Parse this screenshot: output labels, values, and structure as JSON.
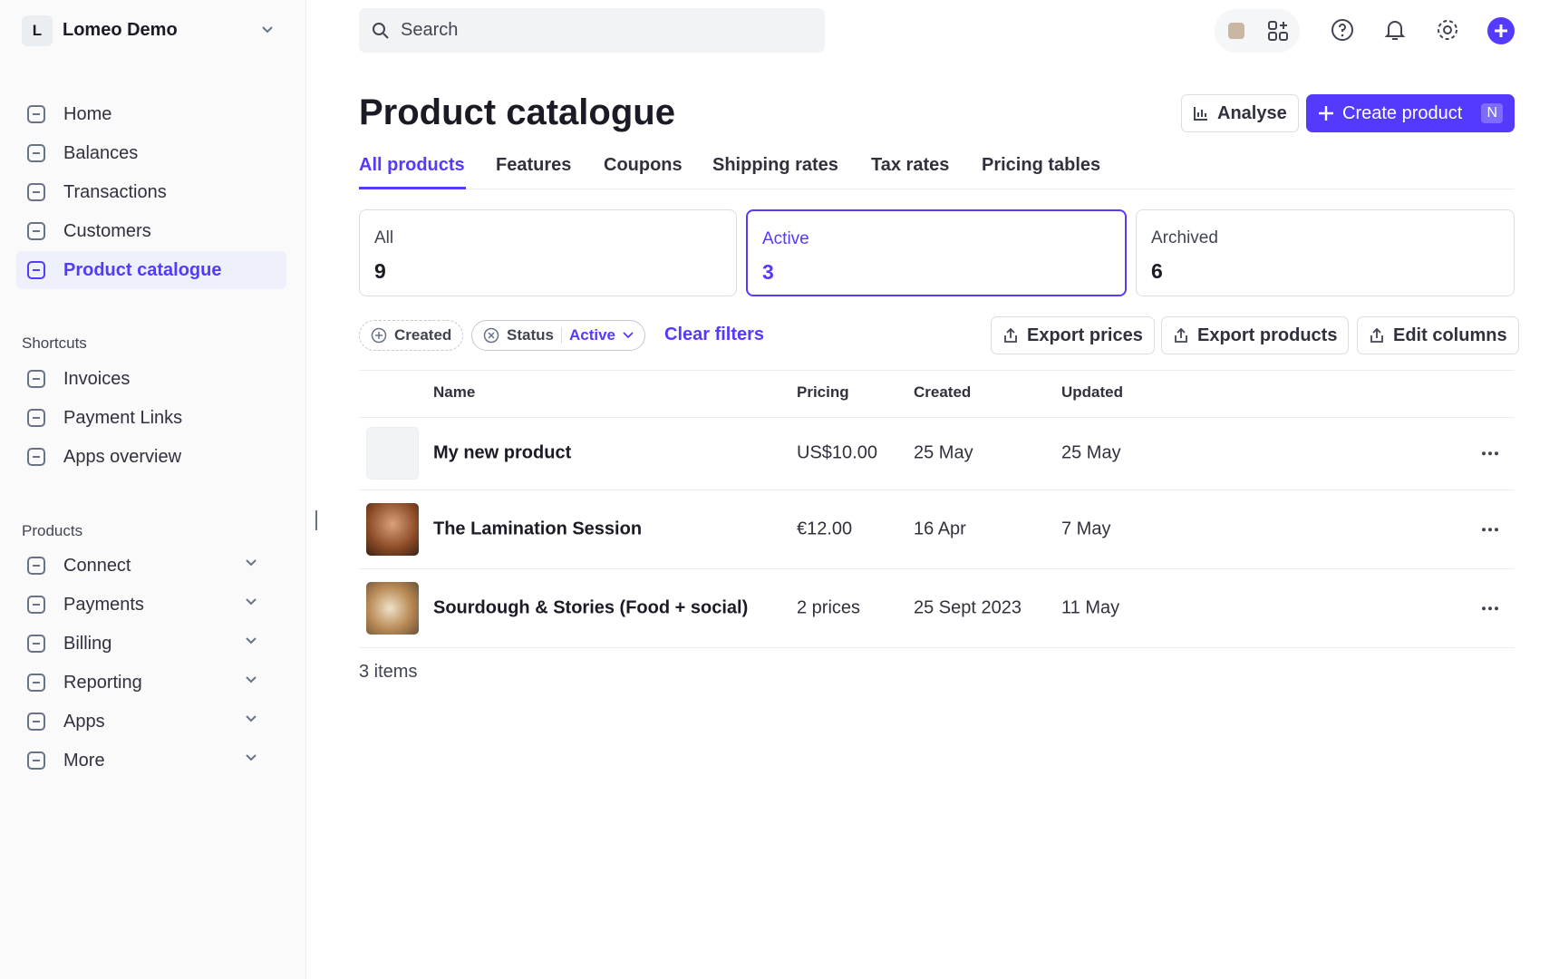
{
  "account": {
    "initial": "L",
    "name": "Lomeo Demo"
  },
  "nav": [
    "Home",
    "Balances",
    "Transactions",
    "Customers",
    "Product catalogue"
  ],
  "shortcuts": {
    "title": "Shortcuts",
    "items": [
      "Invoices",
      "Payment Links",
      "Apps overview"
    ]
  },
  "products_nav": {
    "title": "Products",
    "items": [
      "Connect",
      "Payments",
      "Billing",
      "Reporting",
      "Apps",
      "More"
    ]
  },
  "search": {
    "placeholder": "Search"
  },
  "header": {
    "title": "Product catalogue",
    "analyse": "Analyse",
    "create": "Create product",
    "shortcut": "N"
  },
  "tabs": [
    "All products",
    "Features",
    "Coupons",
    "Shipping rates",
    "Tax rates",
    "Pricing tables"
  ],
  "status_cards": [
    {
      "label": "All",
      "count": 9
    },
    {
      "label": "Active",
      "count": 3
    },
    {
      "label": "Archived",
      "count": 6
    }
  ],
  "filters": {
    "created": "Created",
    "status": "Status",
    "status_value": "Active",
    "clear": "Clear filters"
  },
  "actions": [
    "Export prices",
    "Export products",
    "Edit columns"
  ],
  "table": {
    "columns": [
      "Name",
      "Pricing",
      "Created",
      "Updated"
    ],
    "rows": [
      [
        "My new product",
        "US$10.00",
        "25 May",
        "25 May"
      ],
      [
        "The Lamination Session",
        "€12.00",
        "16 Apr",
        "7 May"
      ],
      [
        "Sourdough & Stories (Food + social)",
        "2 prices",
        "25 Sept 2023",
        "11 May"
      ]
    ]
  },
  "footer": "3 items"
}
